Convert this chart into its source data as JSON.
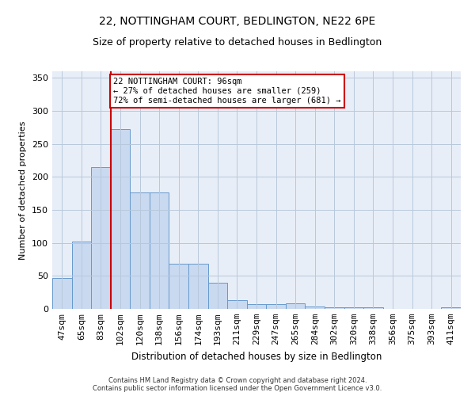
{
  "title": "22, NOTTINGHAM COURT, BEDLINGTON, NE22 6PE",
  "subtitle": "Size of property relative to detached houses in Bedlington",
  "xlabel": "Distribution of detached houses by size in Bedlington",
  "ylabel": "Number of detached properties",
  "categories": [
    "47sqm",
    "65sqm",
    "83sqm",
    "102sqm",
    "120sqm",
    "138sqm",
    "156sqm",
    "174sqm",
    "193sqm",
    "211sqm",
    "229sqm",
    "247sqm",
    "265sqm",
    "284sqm",
    "302sqm",
    "320sqm",
    "338sqm",
    "356sqm",
    "375sqm",
    "393sqm",
    "411sqm"
  ],
  "values": [
    47,
    102,
    215,
    272,
    177,
    177,
    68,
    68,
    40,
    13,
    7,
    7,
    9,
    4,
    2,
    2,
    3,
    0,
    0,
    0,
    3
  ],
  "bar_color": "#c9d9f0",
  "bar_edge_color": "#6699cc",
  "highlight_line_color": "#cc0000",
  "annotation_text": "22 NOTTINGHAM COURT: 96sqm\n← 27% of detached houses are smaller (259)\n72% of semi-detached houses are larger (681) →",
  "annotation_box_color": "#ffffff",
  "annotation_box_edge_color": "#cc0000",
  "bg_color": "#e8eef7",
  "footer": "Contains HM Land Registry data © Crown copyright and database right 2024.\nContains public sector information licensed under the Open Government Licence v3.0.",
  "ylim": [
    0,
    360
  ],
  "yticks": [
    0,
    50,
    100,
    150,
    200,
    250,
    300,
    350
  ],
  "title_fontsize": 10,
  "subtitle_fontsize": 9,
  "ylabel_fontsize": 8,
  "xlabel_fontsize": 8.5,
  "footer_fontsize": 6,
  "tick_fontsize": 8,
  "annot_fontsize": 7.5
}
